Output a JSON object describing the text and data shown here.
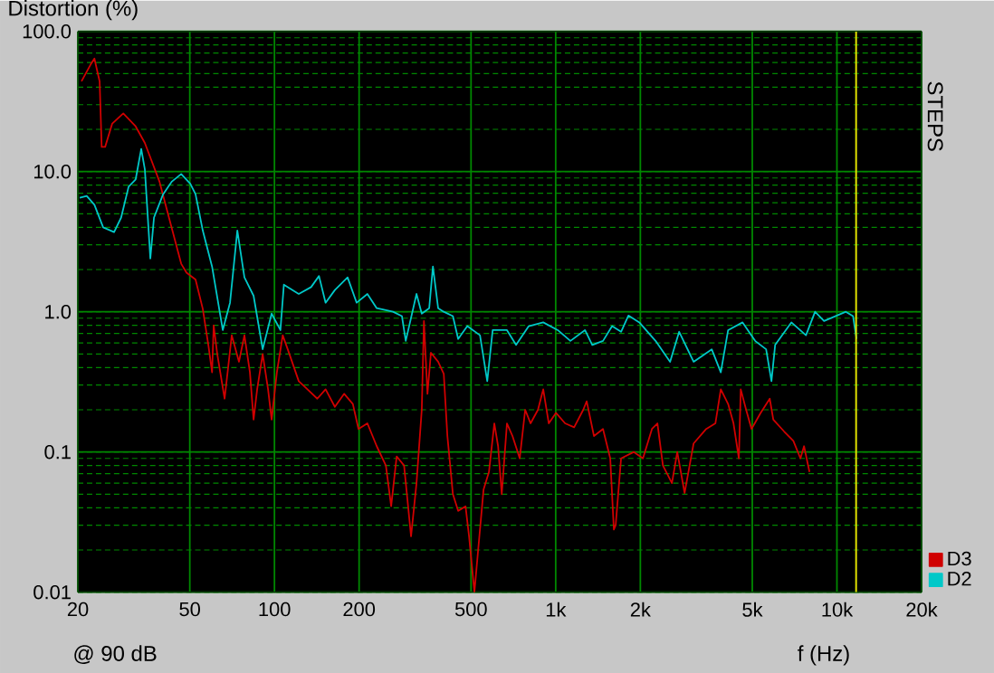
{
  "chart_data": {
    "type": "line",
    "ylabel": "Distortion (%)",
    "xlabel": "f (Hz)",
    "annotations": [
      "@ 90 dB",
      "STEPS"
    ],
    "log": "xy",
    "grid": true,
    "legend": "bottom right",
    "xlim": [
      20,
      20000
    ],
    "ylim": [
      0.01,
      100
    ],
    "xticks": [
      20,
      50,
      100,
      200,
      500,
      {
        "value": 1000,
        "label": "1k"
      },
      {
        "value": 2000,
        "label": "2k"
      },
      {
        "value": 5000,
        "label": "5k"
      },
      {
        "value": 10000,
        "label": "10k"
      },
      {
        "value": 20000,
        "label": "20k"
      }
    ],
    "yticks": [
      0.01,
      0.1,
      {
        "value": 1,
        "label": "1.0"
      },
      {
        "value": 10,
        "label": "10.0"
      },
      {
        "value": 100,
        "label": "100.0"
      }
    ],
    "ref_lines": [
      {
        "axis": "x",
        "value": 11700,
        "color": "#e0e000"
      }
    ],
    "series": [
      {
        "name": "D3",
        "color": "#d00000",
        "x": [
          20.6,
          22.2,
          22.9,
          23.9,
          24.3,
          25.0,
          26.5,
          29.0,
          32.1,
          34.6,
          39.0,
          41.4,
          46.6,
          48.7,
          52.4,
          55.6,
          58.2,
          60.0,
          60.8,
          62.6,
          66.5,
          70.5,
          74.8,
          78.2,
          81.8,
          84.3,
          86.8,
          90.8,
          94.9,
          97.7,
          102,
          107,
          113,
          122,
          131,
          142,
          152,
          164,
          177,
          190,
          199,
          214,
          231,
          249,
          260,
          272,
          289,
          306,
          320,
          334,
          340,
          350,
          360,
          382,
          400,
          412,
          431,
          450,
          478,
          492,
          514,
          530,
          554,
          579,
          605,
          624,
          643,
          671,
          702,
          745,
          779,
          814,
          865,
          903,
          945,
          1002,
          1080,
          1163,
          1253,
          1289,
          1368,
          1473,
          1563,
          1610,
          1634,
          1708,
          1897,
          2043,
          2199,
          2300,
          2406,
          2590,
          2706,
          2873,
          3093,
          3430,
          3697,
          3865,
          4103,
          4288,
          4480,
          4550,
          4755,
          4970,
          5354,
          5769,
          5940,
          6490,
          6998,
          7418,
          7640,
          7990
        ],
        "values": [
          44,
          58,
          64,
          44,
          15,
          15,
          22,
          26,
          21,
          16,
          8.5,
          5.4,
          2.2,
          1.9,
          1.7,
          1.05,
          0.58,
          0.37,
          0.8,
          0.5,
          0.24,
          0.68,
          0.44,
          0.68,
          0.37,
          0.17,
          0.28,
          0.5,
          0.28,
          0.17,
          0.37,
          0.68,
          0.5,
          0.32,
          0.28,
          0.24,
          0.28,
          0.21,
          0.26,
          0.22,
          0.146,
          0.16,
          0.11,
          0.08,
          0.041,
          0.093,
          0.08,
          0.025,
          0.06,
          0.2,
          0.86,
          0.26,
          0.51,
          0.44,
          0.36,
          0.13,
          0.05,
          0.038,
          0.041,
          0.025,
          0.01,
          0.02,
          0.054,
          0.072,
          0.16,
          0.11,
          0.05,
          0.16,
          0.13,
          0.09,
          0.2,
          0.16,
          0.2,
          0.28,
          0.16,
          0.19,
          0.16,
          0.15,
          0.2,
          0.23,
          0.13,
          0.146,
          0.09,
          0.028,
          0.03,
          0.09,
          0.1,
          0.09,
          0.146,
          0.16,
          0.08,
          0.06,
          0.1,
          0.051,
          0.115,
          0.146,
          0.16,
          0.28,
          0.22,
          0.16,
          0.09,
          0.28,
          0.2,
          0.146,
          0.19,
          0.24,
          0.17,
          0.14,
          0.12,
          0.09,
          0.11,
          0.072
        ]
      },
      {
        "name": "D2",
        "color": "#00c8c8",
        "x": [
          20.3,
          21.5,
          22.9,
          24.6,
          26.9,
          28.5,
          30.3,
          32.1,
          33.6,
          34.6,
          36.2,
          37.3,
          40.2,
          43.2,
          46.6,
          50.2,
          52.4,
          55.6,
          60.0,
          65.5,
          69.5,
          73.8,
          78.2,
          84.3,
          90.8,
          97.7,
          105,
          108,
          122,
          135,
          144,
          152,
          164,
          182,
          196,
          214,
          231,
          264,
          284,
          293,
          320,
          334,
          355,
          366,
          382,
          400,
          431,
          450,
          485,
          538,
          571,
          597,
          671,
          723,
          802,
          903,
          1017,
          1128,
          1271,
          1349,
          1473,
          1587,
          1708,
          1814,
          1983,
          2265,
          2551,
          2748,
          3093,
          3588,
          3865,
          4103,
          4618,
          5119,
          5600,
          5851,
          6030,
          6886,
          7762,
          8360,
          8999,
          10760,
          11410,
          11740
        ],
        "values": [
          6.5,
          6.7,
          5.8,
          4.0,
          3.7,
          4.7,
          7.8,
          8.8,
          14.5,
          10.4,
          2.4,
          4.7,
          6.9,
          8.5,
          9.6,
          8.2,
          6.9,
          3.8,
          2.1,
          0.74,
          1.16,
          3.8,
          1.76,
          1.3,
          0.54,
          0.97,
          0.74,
          1.56,
          1.34,
          1.5,
          1.8,
          1.16,
          1.43,
          1.76,
          1.16,
          1.34,
          1.06,
          1.0,
          0.93,
          0.62,
          1.34,
          0.97,
          1.06,
          2.1,
          1.06,
          1.0,
          0.93,
          0.64,
          0.79,
          0.68,
          0.32,
          0.74,
          0.74,
          0.58,
          0.79,
          0.84,
          0.74,
          0.62,
          0.74,
          0.58,
          0.62,
          0.79,
          0.72,
          0.94,
          0.84,
          0.62,
          0.44,
          0.72,
          0.44,
          0.54,
          0.37,
          0.74,
          0.84,
          0.62,
          0.54,
          0.32,
          0.58,
          0.84,
          0.68,
          1.0,
          0.86,
          1.0,
          0.93,
          0.64
        ]
      }
    ]
  }
}
